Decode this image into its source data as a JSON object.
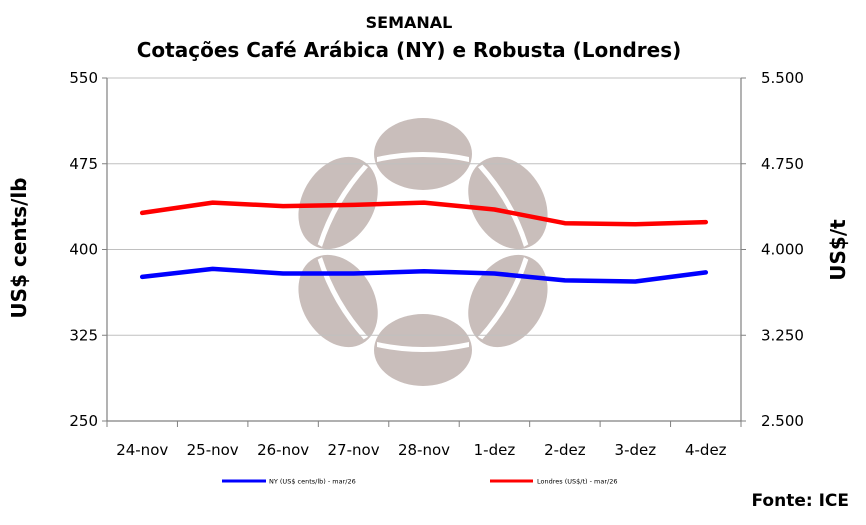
{
  "chart_data": {
    "type": "line",
    "title": "SEMANAL",
    "subtitle": "Cotações Café Arábica (NY) e Robusta (Londres)",
    "categories": [
      "24-nov",
      "25-nov",
      "26-nov",
      "27-nov",
      "28-nov",
      "1-dez",
      "2-dez",
      "3-dez",
      "4-dez"
    ],
    "ylabel": "US$ cents/lb",
    "y2label": "US$/t",
    "ylim": [
      250,
      550
    ],
    "y_ticks": [
      "250",
      "325",
      "400",
      "475",
      "550"
    ],
    "y_tick_values": [
      250,
      325,
      400,
      475,
      550
    ],
    "y2lim": [
      2500,
      5500
    ],
    "y2_ticks": [
      "2.500",
      "3.250",
      "4.000",
      "4.750",
      "5.500"
    ],
    "grid": true,
    "legend_position": "bottom",
    "series": [
      {
        "name": "NY (US$ cents/lb) - mar/26",
        "axis": "left",
        "color": "#0000ff",
        "values": [
          376,
          383,
          379,
          379,
          381,
          379,
          373,
          372,
          380
        ]
      },
      {
        "name": "Londres (US$/t) - mar/26",
        "axis": "right",
        "color": "#ff0000",
        "values": [
          4320,
          4410,
          4380,
          4390,
          4410,
          4350,
          4230,
          4220,
          4240
        ]
      }
    ],
    "source": "Fonte: ICE"
  }
}
